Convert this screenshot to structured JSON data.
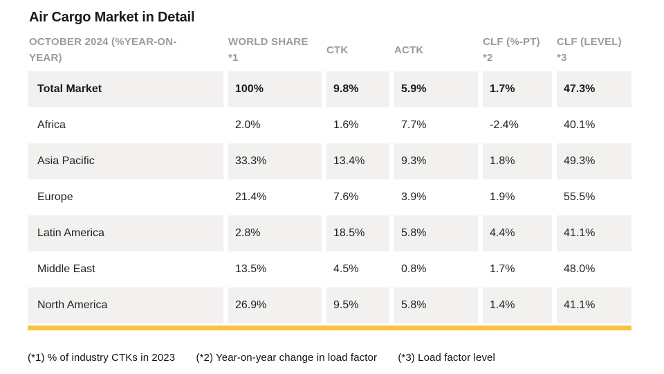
{
  "title": "Air Cargo Market in Detail",
  "colors": {
    "accent_bar": "#f8c43d",
    "row_stripe": "#f2f1ef",
    "header_text": "#9b9b98",
    "body_text": "#222222"
  },
  "table": {
    "header": [
      {
        "line1": "OCTOBER 2024 (%YEAR-ON-",
        "line2": "YEAR)"
      },
      {
        "line1": "WORLD SHARE",
        "line2": "*1"
      },
      {
        "line1": "CTK",
        "line2": ""
      },
      {
        "line1": "ACTK",
        "line2": ""
      },
      {
        "line1": "CLF (%-PT)",
        "line2": "*2"
      },
      {
        "line1": "CLF (LEVEL)",
        "line2": "*3"
      }
    ],
    "rows": [
      {
        "region": "Total Market",
        "values": [
          "100%",
          "9.8%",
          "5.9%",
          "1.7%",
          "47.3%"
        ]
      },
      {
        "region": "Africa",
        "values": [
          "2.0%",
          "1.6%",
          "7.7%",
          "-2.4%",
          "40.1%"
        ]
      },
      {
        "region": "Asia Pacific",
        "values": [
          "33.3%",
          "13.4%",
          "9.3%",
          "1.8%",
          "49.3%"
        ]
      },
      {
        "region": "Europe",
        "values": [
          "21.4%",
          "7.6%",
          "3.9%",
          "1.9%",
          "55.5%"
        ]
      },
      {
        "region": "Latin America",
        "values": [
          "2.8%",
          "18.5%",
          "5.8%",
          "4.4%",
          "41.1%"
        ]
      },
      {
        "region": "Middle East",
        "values": [
          "13.5%",
          "4.5%",
          "0.8%",
          "1.7%",
          "48.0%"
        ]
      },
      {
        "region": "North America",
        "values": [
          "26.9%",
          "9.5%",
          "5.8%",
          "1.4%",
          "41.1%"
        ]
      }
    ]
  },
  "footnotes": [
    "(*1) % of industry CTKs in 2023",
    "(*2) Year-on-year change in load factor",
    "(*3) Load factor level"
  ],
  "chart_data": {
    "type": "table",
    "title": "Air Cargo Market in Detail",
    "subtitle": "OCTOBER 2024 (%YEAR-ON-YEAR)",
    "columns": [
      "OCTOBER 2024 (%YEAR-ON-YEAR)",
      "WORLD SHARE *1",
      "CTK",
      "ACTK",
      "CLF (%-PT) *2",
      "CLF (LEVEL) *3"
    ],
    "rows": [
      [
        "Total Market",
        "100%",
        "9.8%",
        "5.9%",
        "1.7%",
        "47.3%"
      ],
      [
        "Africa",
        "2.0%",
        "1.6%",
        "7.7%",
        "-2.4%",
        "40.1%"
      ],
      [
        "Asia Pacific",
        "33.3%",
        "13.4%",
        "9.3%",
        "1.8%",
        "49.3%"
      ],
      [
        "Europe",
        "21.4%",
        "7.6%",
        "3.9%",
        "1.9%",
        "55.5%"
      ],
      [
        "Latin America",
        "2.8%",
        "18.5%",
        "5.8%",
        "4.4%",
        "41.1%"
      ],
      [
        "Middle East",
        "13.5%",
        "4.5%",
        "0.8%",
        "1.7%",
        "48.0%"
      ],
      [
        "North America",
        "26.9%",
        "9.5%",
        "5.8%",
        "1.4%",
        "41.1%"
      ]
    ],
    "footnotes": [
      "(*1) % of industry CTKs in 2023",
      "(*2) Year-on-year change in load factor",
      "(*3) Load factor level"
    ],
    "layout_hints": {
      "striped_rows": "even rows shaded",
      "bold_row": "Total Market",
      "accent_rule_bottom": true
    }
  }
}
